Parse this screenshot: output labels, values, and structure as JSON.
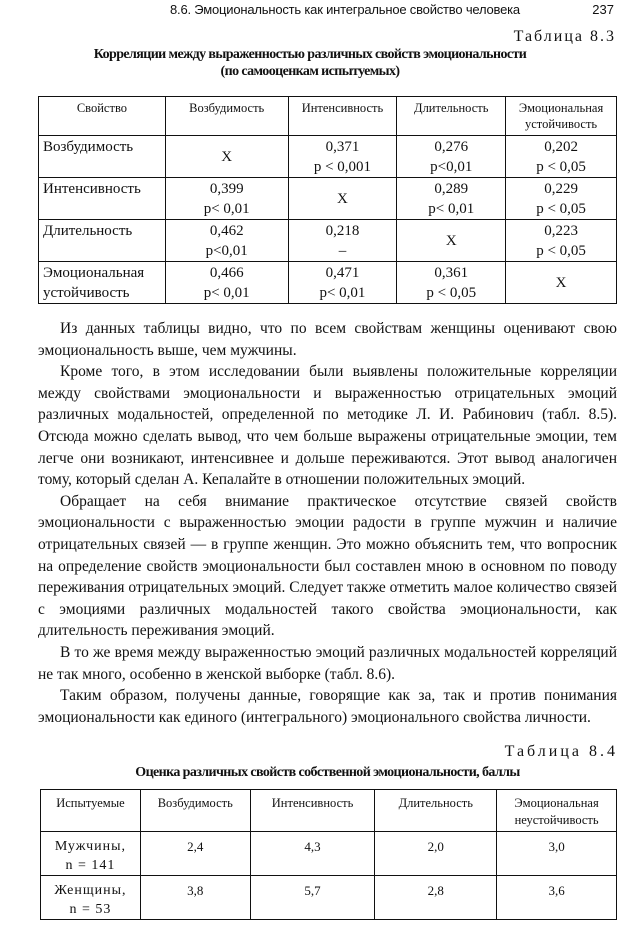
{
  "header": {
    "running_title": "8.6. Эмоциональность как интегральное свойство человека",
    "page_number": "237"
  },
  "table1": {
    "label": "Таблица 8.3",
    "caption_line1": "Корреляции между выраженностью различных свойств эмоциональности",
    "caption_line2": "(по самооценкам испытуемых)",
    "columns": [
      "Свойство",
      "Возбудимость",
      "Интенсивность",
      "Длительность",
      "Эмоциональная устойчивость"
    ],
    "rows": [
      {
        "name": "Возбудимость",
        "cells": [
          {
            "r": "X",
            "p": ""
          },
          {
            "r": "0,371",
            "p": "p < 0,001"
          },
          {
            "r": "0,276",
            "p": "p<0,01"
          },
          {
            "r": "0,202",
            "p": "p < 0,05"
          }
        ]
      },
      {
        "name": "Интенсивность",
        "cells": [
          {
            "r": "0,399",
            "p": "p< 0,01"
          },
          {
            "r": "X",
            "p": ""
          },
          {
            "r": "0,289",
            "p": "p< 0,01"
          },
          {
            "r": "0,229",
            "p": "p < 0,05"
          }
        ]
      },
      {
        "name": "Длительность",
        "cells": [
          {
            "r": "0,462",
            "p": "p<0,01"
          },
          {
            "r": "0,218",
            "p": "–"
          },
          {
            "r": "X",
            "p": ""
          },
          {
            "r": "0,223",
            "p": "p < 0,05"
          }
        ]
      },
      {
        "name": "Эмоциональная устойчивость",
        "cells": [
          {
            "r": "0,466",
            "p": "p< 0,01"
          },
          {
            "r": "0,471",
            "p": "p< 0,01"
          },
          {
            "r": "0,361",
            "p": "p < 0,05"
          },
          {
            "r": "X",
            "p": ""
          }
        ]
      }
    ]
  },
  "body": {
    "paragraphs": [
      "Из данных таблицы видно, что по всем свойствам женщины оценивают свою эмоциональность выше, чем мужчины.",
      "Кроме того, в этом исследовании были выявлены положительные корреляции между свойствами эмоциональности и выраженностью отрицательных эмоций различных модальностей, определенной по методике Л. И. Рабинович (табл. 8.5). Отсюда можно сделать вывод, что чем больше выражены отрицательные эмоции, тем легче они возникают, интенсивнее и дольше переживаются. Этот вывод аналогичен тому, который сделан А. Кепалайте в отношении положительных эмоций.",
      "Обращает на себя внимание практическое отсутствие связей свойств эмоциональности с выраженностью эмоции радости в группе мужчин и наличие отрицательных связей — в группе женщин. Это можно объяснить тем, что вопросник на определение свойств эмоциональности был составлен мною в основном по поводу переживания отрицательных эмоций. Следует также отметить малое количество связей с эмоциями различных модальностей такого свойства эмоциональности, как длительность переживания эмоций.",
      "В то же время между выраженностью эмоций различных модальностей корреляций не так много, особенно в женской выборке (табл. 8.6).",
      "Таким образом, получены данные, говорящие как за, так и против понимания эмоциональности как единого (интегрального) эмоционального свойства личности."
    ]
  },
  "table2": {
    "label": "Таблица 8.4",
    "caption": "Оценка различных свойств собственной эмоциональности, баллы",
    "columns": [
      "Испытуемые",
      "Возбудимость",
      "Интенсивность",
      "Длительность",
      "Эмоциональная неустойчивость"
    ],
    "rows": [
      {
        "name": "Мужчины,",
        "n": "n = 141",
        "values": [
          "2,4",
          "4,3",
          "2,0",
          "3,0"
        ]
      },
      {
        "name": "Женщины,",
        "n": "n = 53",
        "values": [
          "3,8",
          "5,7",
          "2,8",
          "3,6"
        ]
      }
    ]
  }
}
